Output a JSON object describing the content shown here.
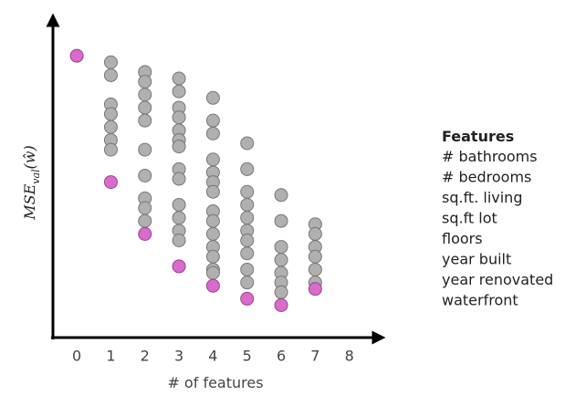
{
  "chart_data": {
    "type": "scatter",
    "xlabel": "# of features",
    "ylabel": [
      "MSE",
      "val",
      "(ŵ)"
    ],
    "xlim": [
      -0.7,
      9
    ],
    "xticks": [
      0,
      1,
      2,
      3,
      4,
      5,
      6,
      7,
      8
    ],
    "ylim": [
      0,
      100
    ],
    "series": [
      {
        "color": "#b0b0b0",
        "x": [
          1,
          1,
          1,
          1,
          1,
          1,
          1,
          2,
          2,
          2,
          2,
          2,
          2,
          2,
          2,
          2,
          2,
          3,
          3,
          3,
          3,
          3,
          3,
          3,
          3,
          3,
          3,
          3,
          3,
          3,
          4,
          4,
          4,
          4,
          4,
          4,
          4,
          4,
          4,
          4,
          4,
          4,
          4,
          4,
          5,
          5,
          5,
          5,
          5,
          5,
          5,
          5,
          5,
          5,
          6,
          6,
          6,
          6,
          6,
          6,
          6,
          7,
          7,
          7,
          7,
          7,
          7
        ],
        "values": [
          85,
          81,
          72,
          69,
          65,
          61,
          58,
          82,
          79,
          75,
          71,
          67,
          58,
          50,
          43,
          40,
          36,
          80,
          76,
          71,
          68,
          64,
          61,
          59,
          52,
          49,
          41,
          37,
          33,
          30,
          74,
          67,
          63,
          55,
          51,
          48,
          45,
          39,
          36,
          32,
          28,
          25,
          21,
          20,
          60,
          52,
          45,
          41,
          37,
          33,
          30,
          26,
          21,
          17,
          44,
          36,
          28,
          24,
          20,
          17,
          14,
          35,
          32,
          28,
          25,
          21,
          17
        ]
      },
      {
        "color": "#d96bcb",
        "x": [
          0,
          1,
          2,
          3,
          4,
          5,
          6,
          7
        ],
        "values": [
          87,
          48,
          32,
          22,
          16,
          12,
          10,
          15
        ]
      }
    ],
    "features_title": "Features",
    "features": [
      "# bathrooms",
      "# bedrooms",
      "sq.ft. living",
      "sq.ft lot",
      "floors",
      "year built",
      "year renovated",
      "waterfront"
    ]
  }
}
